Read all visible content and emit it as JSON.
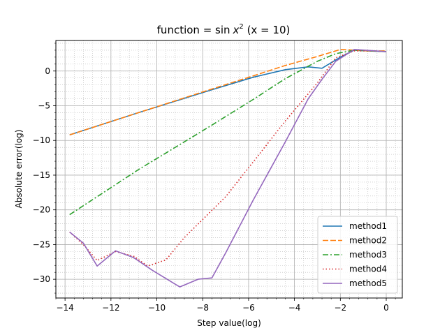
{
  "chart_data": {
    "type": "line",
    "title_prefix": "function = sin",
    "title_var": "x",
    "title_sup": "2",
    "title_suffix": " (x = 10)",
    "xlabel": "Step value(log)",
    "ylabel": "Absolute error(log)",
    "xlim": [
      -14.4,
      0.7
    ],
    "ylim": [
      -32.7,
      4.4
    ],
    "xticks": [
      -14,
      -12,
      -10,
      -8,
      -6,
      -4,
      -2,
      0
    ],
    "xtick_labels": [
      "−14",
      "−12",
      "−10",
      "−8",
      "−6",
      "−4",
      "−2",
      "0"
    ],
    "yticks": [
      -30,
      -25,
      -20,
      -15,
      -10,
      -5,
      0
    ],
    "ytick_labels": [
      "−30",
      "−25",
      "−20",
      "−15",
      "−10",
      "−5",
      "0"
    ],
    "x_minor_step": 0.4,
    "y_minor_step": 1,
    "grid": "major and minor",
    "legend_position": "lower-right",
    "series": [
      {
        "name": "method1",
        "color": "#1f77b4",
        "dash": "solid",
        "points": [
          [
            -13.8,
            -9.2
          ],
          [
            -10.8,
            -6.0
          ],
          [
            -7.8,
            -2.9
          ],
          [
            -5.8,
            -0.9
          ],
          [
            -4.4,
            0.2
          ],
          [
            -3.4,
            0.6
          ],
          [
            -2.8,
            0.4
          ],
          [
            -2.4,
            1.2
          ],
          [
            -2.0,
            2.0
          ],
          [
            -1.4,
            3.0
          ],
          [
            -0.8,
            2.9
          ],
          [
            0.0,
            2.8
          ]
        ]
      },
      {
        "name": "method2",
        "color": "#ff7f0e",
        "dash": "8,3",
        "points": [
          [
            -13.8,
            -9.2
          ],
          [
            -10.8,
            -6.0
          ],
          [
            -7.8,
            -2.8
          ],
          [
            -5.8,
            -0.7
          ],
          [
            -4.4,
            0.8
          ],
          [
            -3.0,
            2.1
          ],
          [
            -2.0,
            3.1
          ],
          [
            -1.4,
            3.0
          ],
          [
            -0.8,
            2.9
          ],
          [
            0.0,
            2.9
          ]
        ]
      },
      {
        "name": "method3",
        "color": "#2ca02c",
        "dash": "8,3,2,3",
        "points": [
          [
            -13.8,
            -20.7
          ],
          [
            -10.8,
            -14.2
          ],
          [
            -7.8,
            -8.2
          ],
          [
            -5.8,
            -4.1
          ],
          [
            -4.4,
            -1.1
          ],
          [
            -3.0,
            1.4
          ],
          [
            -2.2,
            2.5
          ],
          [
            -1.4,
            3.0
          ],
          [
            -0.8,
            2.9
          ],
          [
            0.0,
            2.8
          ]
        ]
      },
      {
        "name": "method4",
        "color": "#d62728",
        "dash": "1.5,3",
        "points": [
          [
            -13.8,
            -23.2
          ],
          [
            -13.2,
            -25.0
          ],
          [
            -12.6,
            -27.3
          ],
          [
            -11.8,
            -26.0
          ],
          [
            -11.0,
            -26.7
          ],
          [
            -10.4,
            -28.1
          ],
          [
            -9.6,
            -27.2
          ],
          [
            -8.8,
            -24.0
          ],
          [
            -7.0,
            -18.1
          ],
          [
            -5.8,
            -13.1
          ],
          [
            -4.4,
            -7.2
          ],
          [
            -3.0,
            -1.7
          ],
          [
            -2.2,
            1.9
          ],
          [
            -1.4,
            2.9
          ],
          [
            -0.8,
            2.9
          ],
          [
            0.0,
            2.8
          ]
        ]
      },
      {
        "name": "method5",
        "color": "#9467bd",
        "dash": "solid",
        "points": [
          [
            -13.8,
            -23.2
          ],
          [
            -13.2,
            -24.8
          ],
          [
            -12.6,
            -28.1
          ],
          [
            -11.8,
            -25.9
          ],
          [
            -11.0,
            -26.9
          ],
          [
            -10.2,
            -28.7
          ],
          [
            -9.0,
            -31.1
          ],
          [
            -8.2,
            -30.0
          ],
          [
            -7.6,
            -29.8
          ],
          [
            -7.0,
            -26.2
          ],
          [
            -5.8,
            -18.6
          ],
          [
            -4.4,
            -10.2
          ],
          [
            -3.4,
            -4.0
          ],
          [
            -2.8,
            -1.2
          ],
          [
            -2.2,
            1.4
          ],
          [
            -1.4,
            3.1
          ],
          [
            0.0,
            2.8
          ]
        ]
      }
    ]
  }
}
